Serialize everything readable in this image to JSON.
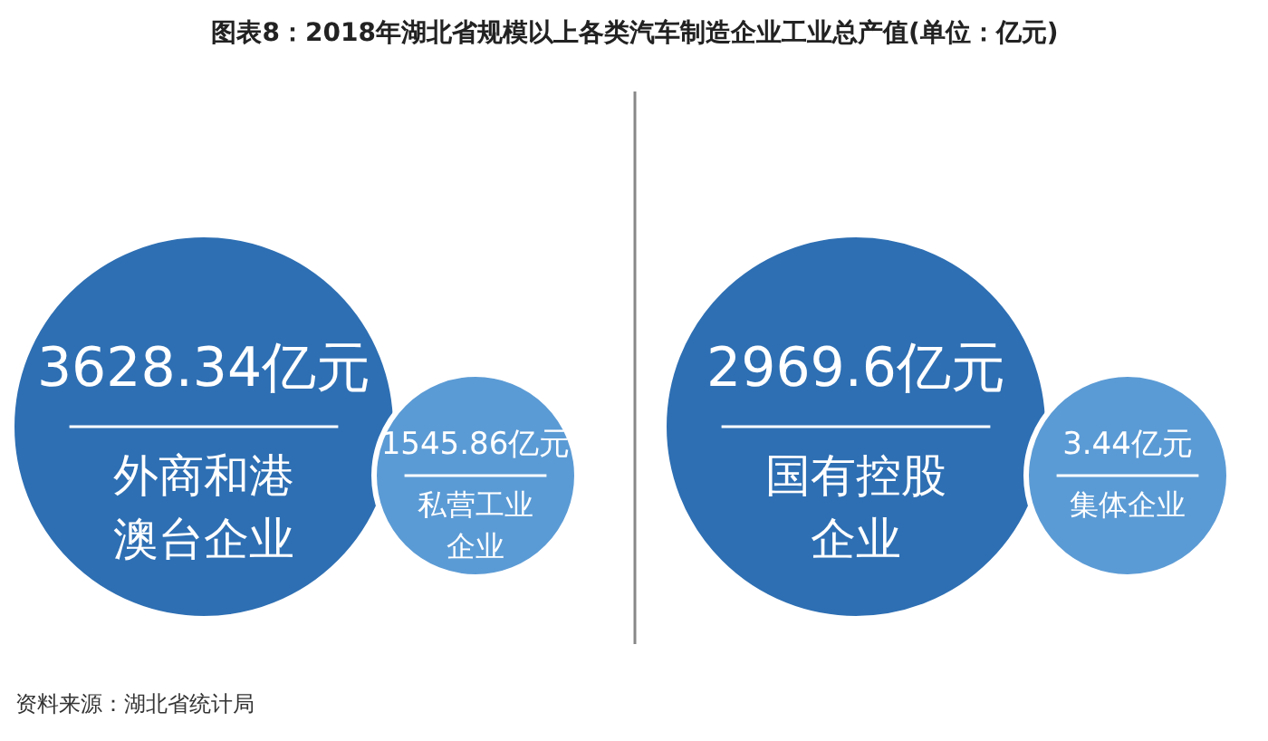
{
  "chart_data": {
    "type": "other",
    "title": "图表8：2018年湖北省规模以上各类汽车制造企业工业总产值(单位：亿元)",
    "categories": [
      "外商和港澳台企业",
      "私营工业企业",
      "国有控股企业",
      "集体企业"
    ],
    "values": [
      3628.34,
      1545.86,
      2969.6,
      3.44
    ],
    "value_labels": [
      "3628.34亿元",
      "1545.86亿元",
      "2969.6亿元",
      "3.44亿元"
    ],
    "colors": [
      "#2e6fb3",
      "#5b9bd5",
      "#2e6fb3",
      "#5b9bd5"
    ],
    "annotations": [
      "资料来源：湖北省统计局"
    ]
  }
}
